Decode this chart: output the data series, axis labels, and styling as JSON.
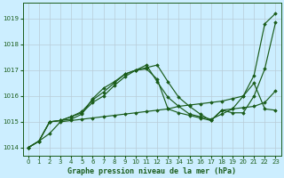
{
  "title": "Graphe pression niveau de la mer (hPa)",
  "background_color": "#cceeff",
  "grid_color": "#b8ccd8",
  "line_color": "#1a5c1a",
  "marker_color": "#1a5c1a",
  "xlim": [
    -0.5,
    23.5
  ],
  "ylim": [
    1013.7,
    1019.6
  ],
  "yticks": [
    1014,
    1015,
    1016,
    1017,
    1018,
    1019
  ],
  "xticks": [
    0,
    1,
    2,
    3,
    4,
    5,
    6,
    7,
    8,
    9,
    10,
    11,
    12,
    13,
    14,
    15,
    16,
    17,
    18,
    19,
    20,
    21,
    22,
    23
  ],
  "series": [
    {
      "x": [
        0,
        1,
        2,
        3,
        4,
        5,
        6,
        7,
        8,
        9,
        10,
        11,
        12,
        13,
        14,
        15,
        16,
        17,
        18,
        19,
        20,
        21,
        22,
        23
      ],
      "y": [
        1014.0,
        1014.25,
        1014.55,
        1015.0,
        1015.05,
        1015.1,
        1015.15,
        1015.2,
        1015.25,
        1015.3,
        1015.35,
        1015.4,
        1015.45,
        1015.5,
        1015.6,
        1015.65,
        1015.7,
        1015.75,
        1015.8,
        1015.9,
        1016.0,
        1016.8,
        1018.8,
        1019.2
      ]
    },
    {
      "x": [
        0,
        1,
        2,
        3,
        4,
        5,
        6,
        7,
        8,
        9,
        10,
        11,
        12,
        13,
        14,
        15,
        16,
        17,
        18,
        19,
        20,
        21,
        22,
        23
      ],
      "y": [
        1014.0,
        1014.25,
        1015.0,
        1015.05,
        1015.1,
        1015.3,
        1015.9,
        1016.3,
        1016.55,
        1016.85,
        1017.0,
        1017.2,
        1016.55,
        1015.95,
        1015.6,
        1015.3,
        1015.2,
        1015.1,
        1015.3,
        1015.5,
        1015.55,
        1015.6,
        1015.75,
        1016.2
      ]
    },
    {
      "x": [
        0,
        1,
        2,
        3,
        4,
        5,
        6,
        7,
        8,
        9,
        10,
        11,
        12,
        13,
        14,
        15,
        16,
        17,
        18,
        19,
        20,
        21,
        22,
        23
      ],
      "y": [
        1014.0,
        1014.25,
        1015.0,
        1015.05,
        1015.2,
        1015.4,
        1015.85,
        1016.15,
        1016.5,
        1016.85,
        1017.0,
        1017.1,
        1017.2,
        1016.55,
        1015.95,
        1015.6,
        1015.3,
        1015.05,
        1015.45,
        1015.35,
        1015.35,
        1016.0,
        1017.05,
        1018.85
      ]
    },
    {
      "x": [
        0,
        1,
        2,
        3,
        4,
        5,
        6,
        7,
        8,
        9,
        10,
        11,
        12,
        13,
        14,
        15,
        16,
        17,
        18,
        19,
        20,
        21,
        22,
        23
      ],
      "y": [
        1014.0,
        1014.25,
        1015.0,
        1015.05,
        1015.2,
        1015.35,
        1015.75,
        1016.0,
        1016.4,
        1016.75,
        1017.0,
        1017.05,
        1016.65,
        1015.5,
        1015.35,
        1015.25,
        1015.15,
        1015.05,
        1015.45,
        1015.5,
        1016.0,
        1016.5,
        1015.5,
        1015.45
      ]
    }
  ]
}
